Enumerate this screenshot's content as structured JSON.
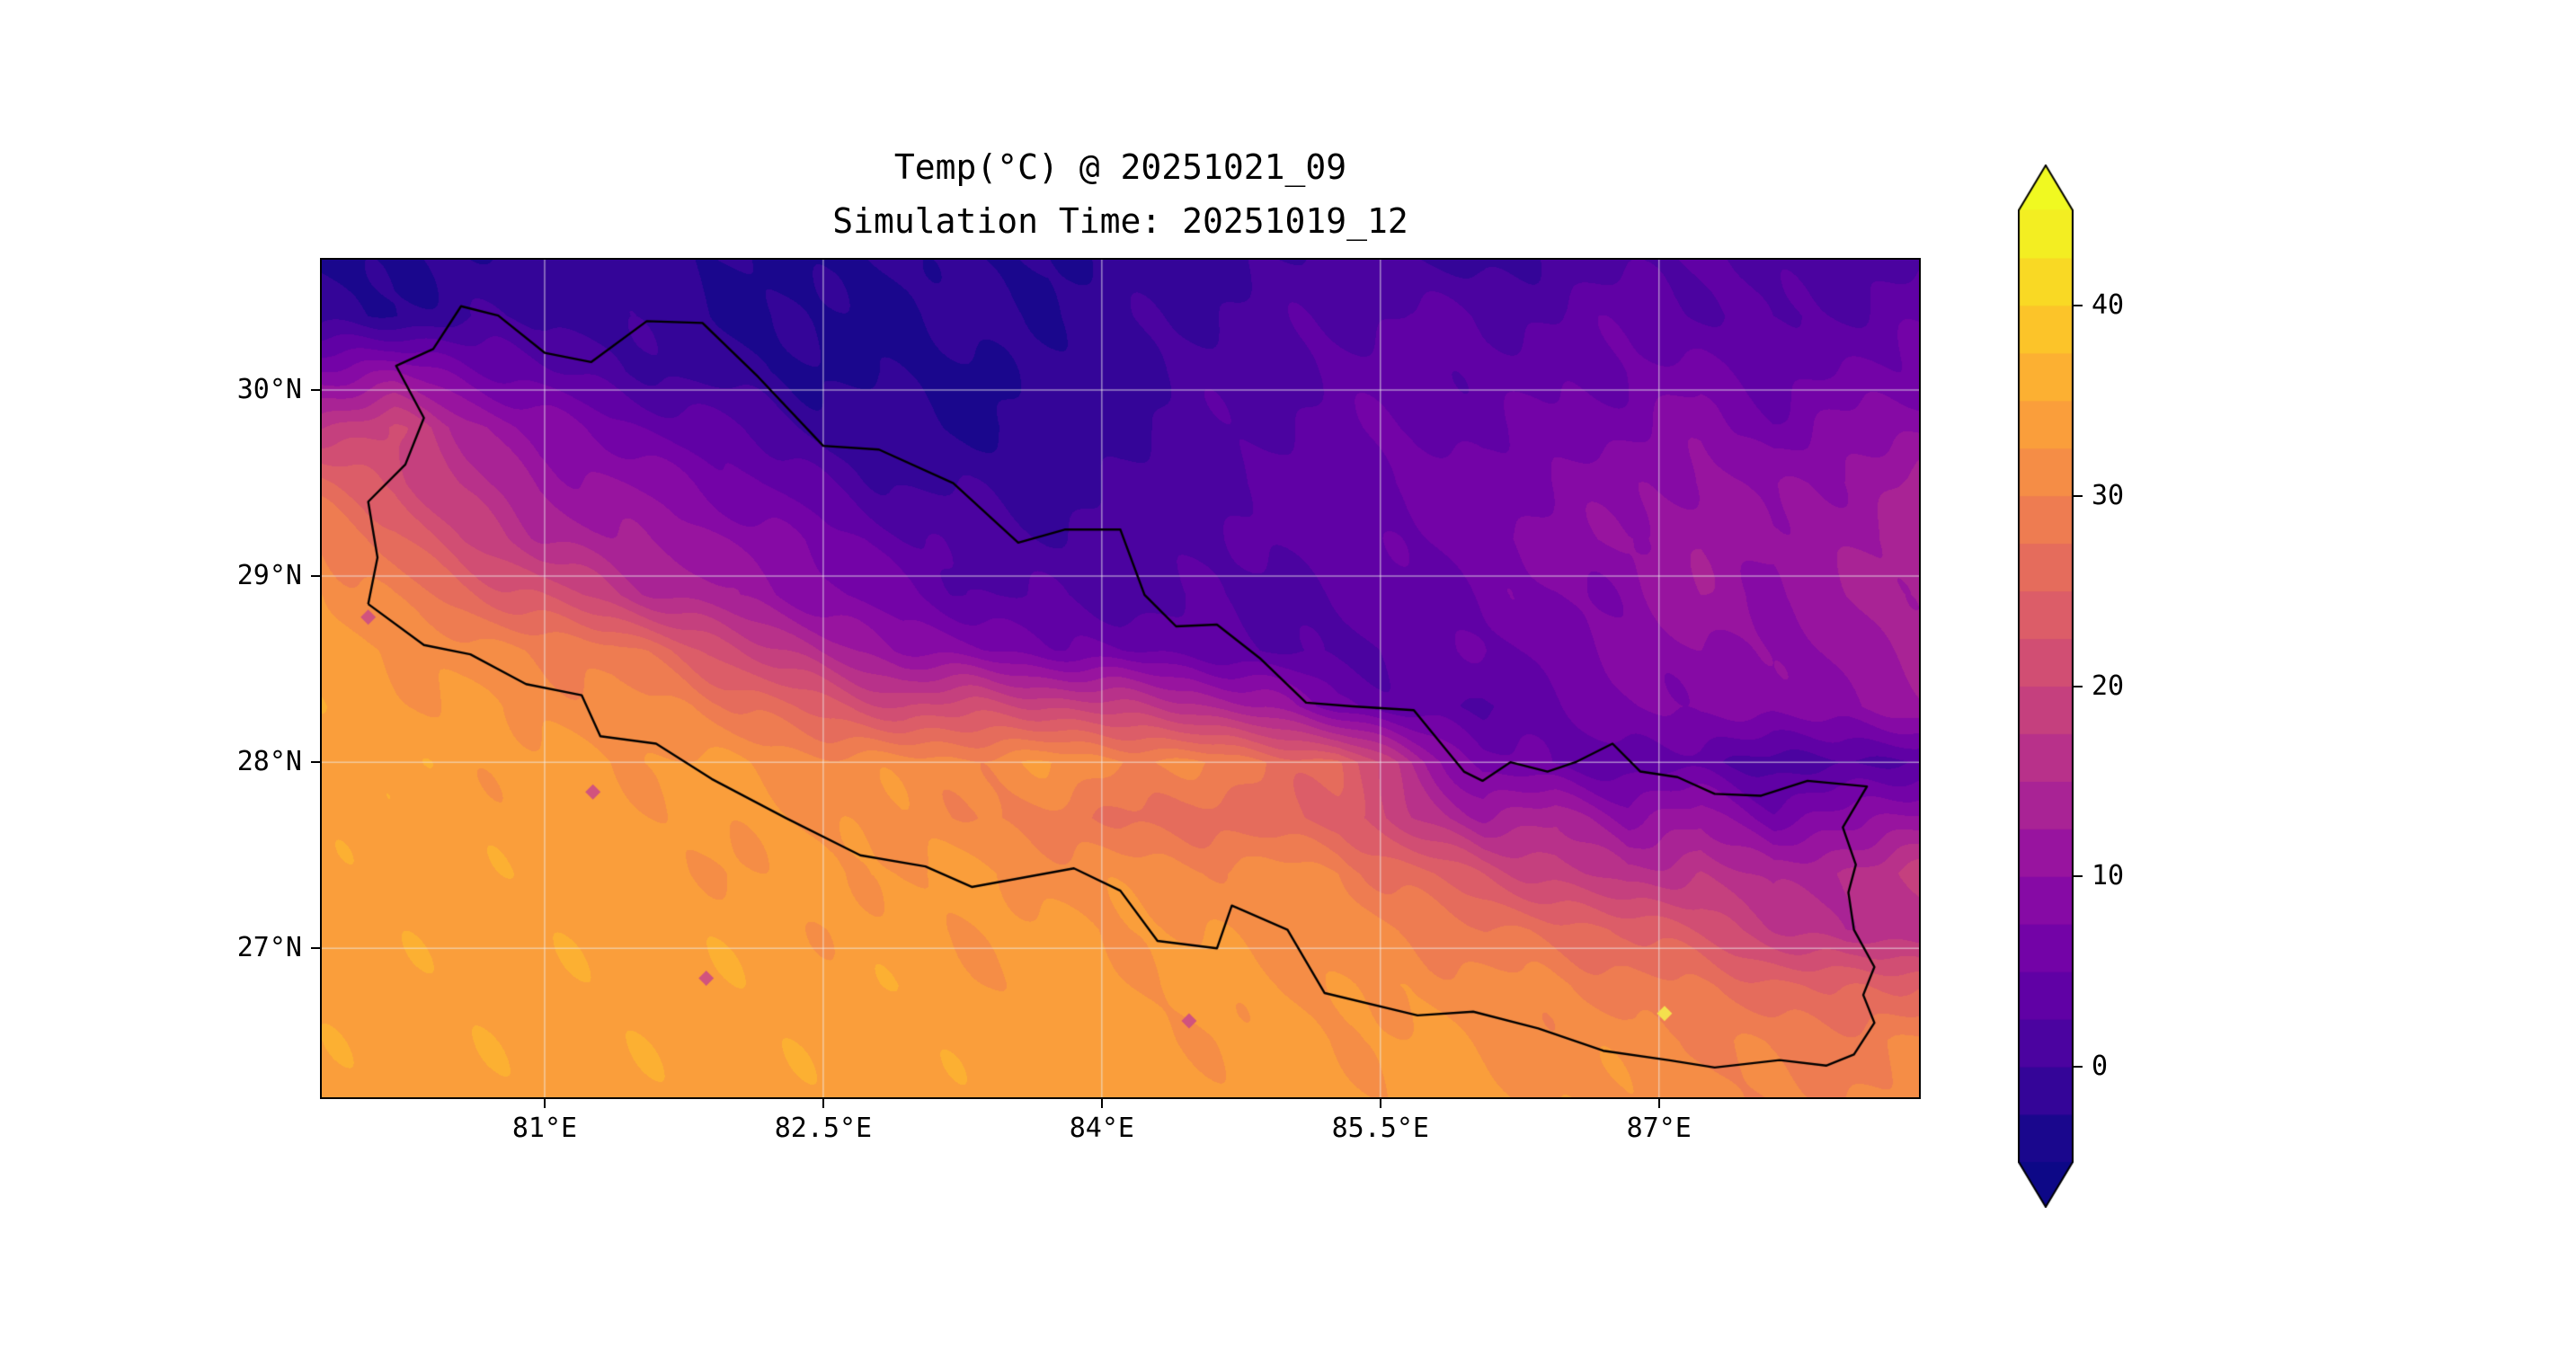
{
  "figure": {
    "background": "#ffffff",
    "frame_color": "#000000"
  },
  "chart_data": {
    "type": "heatmap",
    "title": "Temp(°C) @ 20251021_09",
    "subtitle": "Simulation Time: 20251019_12",
    "region": "Nepal",
    "units": "°C",
    "x_axis": {
      "tick_values": [
        81,
        82.5,
        84,
        85.5,
        87
      ],
      "tick_labels": [
        "81°E",
        "82.5°E",
        "84°E",
        "85.5°E",
        "87°E"
      ],
      "range": [
        79.8,
        88.4
      ]
    },
    "y_axis": {
      "tick_values": [
        30,
        29,
        28,
        27
      ],
      "tick_labels": [
        "30°N",
        "29°N",
        "28°N",
        "27°N"
      ],
      "range": [
        26.2,
        30.7
      ]
    },
    "colorbar": {
      "min": -5,
      "max": 45,
      "step": 2.5,
      "tick_values": [
        40,
        30,
        20,
        10,
        0
      ],
      "tick_labels": [
        "40",
        "30",
        "20",
        "10",
        "0"
      ],
      "extend": "both",
      "colormap": "plasma",
      "under_color": "#0d0887",
      "over_color": "#f0f921",
      "colormap_anchors": [
        [
          0.0,
          "#0d0887"
        ],
        [
          0.1,
          "#41049d"
        ],
        [
          0.2,
          "#6a00a8"
        ],
        [
          0.3,
          "#8f0da4"
        ],
        [
          0.4,
          "#b12a90"
        ],
        [
          0.5,
          "#cc4778"
        ],
        [
          0.6,
          "#e16462"
        ],
        [
          0.7,
          "#f2844b"
        ],
        [
          0.8,
          "#fca636"
        ],
        [
          0.9,
          "#fcce25"
        ],
        [
          1.0,
          "#f0f921"
        ]
      ]
    },
    "gridlines": {
      "color": "#eeeeee",
      "opacity": 0.55
    },
    "grid": {
      "lon_range": [
        79.8,
        88.4
      ],
      "lat_range": [
        26.2,
        30.7
      ],
      "ncols": 23,
      "nrows": 16,
      "order": "row-major, north row first, west column first",
      "values_c": [
        [
          -3,
          -3,
          -2,
          -2,
          -1,
          -2,
          -3,
          -3,
          -2,
          -2,
          -3,
          -2,
          -1,
          0,
          1,
          0,
          -1,
          0,
          2,
          3,
          2,
          1,
          2
        ],
        [
          -2,
          -2,
          -1,
          0,
          -1,
          -2,
          -3,
          -3,
          -3,
          -2,
          -2,
          -1,
          0,
          1,
          2,
          3,
          2,
          3,
          4,
          3,
          2,
          3,
          4
        ],
        [
          8,
          10,
          6,
          3,
          1,
          -1,
          -2,
          -3,
          -3,
          -3,
          -2,
          -1,
          1,
          2,
          3,
          4,
          3,
          4,
          5,
          6,
          4,
          5,
          6
        ],
        [
          18,
          20,
          14,
          9,
          6,
          4,
          2,
          -1,
          -2,
          -3,
          -2,
          -1,
          1,
          2,
          4,
          5,
          4,
          6,
          7,
          9,
          6,
          8,
          10
        ],
        [
          25,
          22,
          16,
          12,
          10,
          8,
          5,
          2,
          0,
          -1,
          -1,
          0,
          2,
          3,
          4,
          6,
          6,
          8,
          9,
          11,
          9,
          11,
          13
        ],
        [
          30,
          26,
          20,
          15,
          13,
          11,
          9,
          6,
          3,
          1,
          0,
          1,
          2,
          3,
          4,
          5,
          7,
          9,
          10,
          12,
          10,
          12,
          14
        ],
        [
          33,
          29,
          26,
          22,
          18,
          14,
          11,
          8,
          5,
          3,
          2,
          1,
          2,
          2,
          3,
          4,
          6,
          7,
          9,
          12,
          10,
          12,
          14
        ],
        [
          33,
          33,
          31,
          30,
          29,
          24,
          19,
          14,
          10,
          8,
          6,
          5,
          4,
          2,
          2,
          3,
          5,
          6,
          8,
          10,
          9,
          11,
          13
        ],
        [
          34,
          33,
          33,
          32,
          31,
          30,
          27,
          23,
          20,
          21,
          20,
          18,
          16,
          12,
          6,
          3,
          2,
          5,
          7,
          9,
          8,
          10,
          12
        ],
        [
          34,
          34,
          34,
          33,
          33,
          33,
          32,
          31,
          31,
          31,
          32,
          31,
          30,
          28,
          25,
          15,
          6,
          4,
          4,
          3,
          2,
          1,
          3
        ],
        [
          34,
          34,
          34,
          33,
          33,
          33,
          33,
          32,
          32,
          30,
          29,
          27,
          26,
          26,
          24,
          18,
          12,
          15,
          9,
          12,
          6,
          9,
          11
        ],
        [
          34,
          34,
          34,
          34,
          34,
          33,
          33,
          33,
          33,
          33,
          32,
          31,
          31,
          31,
          30,
          26,
          22,
          19,
          15,
          18,
          13,
          16,
          18
        ],
        [
          34,
          34,
          34,
          34,
          34,
          34,
          34,
          33,
          33,
          33,
          33,
          33,
          32,
          32,
          31,
          30,
          28,
          26,
          25,
          22,
          18,
          15,
          16
        ],
        [
          34,
          34,
          34,
          34,
          34,
          34,
          34,
          34,
          34,
          33,
          33,
          33,
          33,
          33,
          32,
          32,
          31,
          30,
          29,
          27,
          26,
          24,
          25
        ],
        [
          34,
          34,
          34,
          34,
          34,
          34,
          34,
          34,
          34,
          34,
          34,
          33,
          33,
          33,
          33,
          33,
          32,
          31,
          31,
          30,
          29,
          29,
          30
        ],
        [
          34,
          34,
          34,
          34,
          34,
          34,
          34,
          34,
          34,
          34,
          34,
          34,
          34,
          33,
          33,
          33,
          33,
          32,
          32,
          31,
          30,
          30,
          31
        ]
      ]
    },
    "map_overlay": {
      "name": "nepal-border",
      "color": "#000000",
      "points": [
        [
          80.05,
          28.85
        ],
        [
          80.1,
          29.1
        ],
        [
          80.05,
          29.4
        ],
        [
          80.25,
          29.6
        ],
        [
          80.35,
          29.85
        ],
        [
          80.2,
          30.13
        ],
        [
          80.4,
          30.22
        ],
        [
          80.55,
          30.45
        ],
        [
          80.75,
          30.4
        ],
        [
          81.0,
          30.2
        ],
        [
          81.25,
          30.15
        ],
        [
          81.55,
          30.37
        ],
        [
          81.85,
          30.36
        ],
        [
          82.15,
          30.07
        ],
        [
          82.5,
          29.7
        ],
        [
          82.8,
          29.68
        ],
        [
          83.2,
          29.5
        ],
        [
          83.55,
          29.18
        ],
        [
          83.8,
          29.25
        ],
        [
          84.1,
          29.25
        ],
        [
          84.23,
          28.9
        ],
        [
          84.4,
          28.73
        ],
        [
          84.62,
          28.74
        ],
        [
          84.85,
          28.56
        ],
        [
          85.1,
          28.32
        ],
        [
          85.35,
          28.3
        ],
        [
          85.68,
          28.28
        ],
        [
          85.95,
          27.95
        ],
        [
          86.05,
          27.9
        ],
        [
          86.2,
          28.0
        ],
        [
          86.4,
          27.95
        ],
        [
          86.55,
          28.0
        ],
        [
          86.75,
          28.1
        ],
        [
          86.9,
          27.95
        ],
        [
          87.1,
          27.92
        ],
        [
          87.3,
          27.83
        ],
        [
          87.55,
          27.82
        ],
        [
          87.8,
          27.9
        ],
        [
          88.12,
          27.87
        ],
        [
          87.99,
          27.65
        ],
        [
          88.06,
          27.45
        ],
        [
          88.02,
          27.3
        ],
        [
          88.05,
          27.1
        ],
        [
          88.16,
          26.9
        ],
        [
          88.1,
          26.75
        ],
        [
          88.16,
          26.6
        ],
        [
          88.05,
          26.43
        ],
        [
          87.9,
          26.37
        ],
        [
          87.65,
          26.4
        ],
        [
          87.3,
          26.36
        ],
        [
          87.05,
          26.4
        ],
        [
          86.7,
          26.45
        ],
        [
          86.35,
          26.57
        ],
        [
          86.0,
          26.66
        ],
        [
          85.7,
          26.64
        ],
        [
          85.2,
          26.76
        ],
        [
          85.0,
          27.1
        ],
        [
          84.7,
          27.23
        ],
        [
          84.62,
          27.0
        ],
        [
          84.3,
          27.04
        ],
        [
          84.1,
          27.31
        ],
        [
          83.85,
          27.43
        ],
        [
          83.3,
          27.33
        ],
        [
          83.05,
          27.44
        ],
        [
          82.7,
          27.5
        ],
        [
          82.3,
          27.7
        ],
        [
          81.9,
          27.91
        ],
        [
          81.6,
          28.1
        ],
        [
          81.3,
          28.14
        ],
        [
          81.2,
          28.36
        ],
        [
          80.9,
          28.42
        ],
        [
          80.6,
          28.58
        ],
        [
          80.35,
          28.63
        ],
        [
          80.05,
          28.85
        ]
      ]
    },
    "point_markers": [
      {
        "lon": 80.05,
        "lat": 28.78,
        "color": "#d1537e",
        "shape": "diamond"
      },
      {
        "lon": 81.26,
        "lat": 27.84,
        "color": "#d1537e",
        "shape": "diamond"
      },
      {
        "lon": 81.87,
        "lat": 26.84,
        "color": "#d1537e",
        "shape": "diamond"
      },
      {
        "lon": 84.47,
        "lat": 26.61,
        "color": "#d1537e",
        "shape": "diamond"
      },
      {
        "lon": 87.03,
        "lat": 26.65,
        "color": "#f4e04d",
        "shape": "diamond"
      }
    ]
  }
}
